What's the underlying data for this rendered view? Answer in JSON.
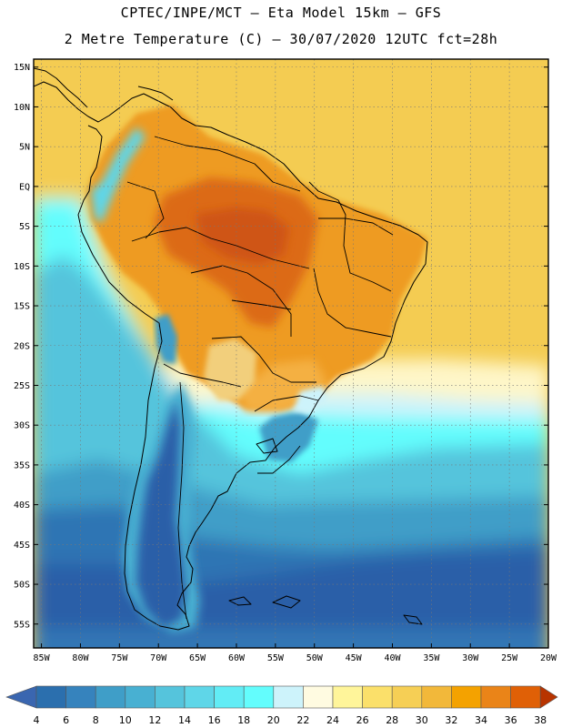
{
  "header": {
    "line1": "CPTEC/INPE/MCT –  Eta Model 15km – GFS",
    "line2": "2 Metre Temperature (C) – 30/07/2020 12UTC fct=28h"
  },
  "map": {
    "lat_range": [
      -58,
      16
    ],
    "lon_range": [
      -86,
      -20
    ],
    "lat_ticks": [
      {
        "v": 15,
        "label": "15N"
      },
      {
        "v": 10,
        "label": "10N"
      },
      {
        "v": 5,
        "label": "5N"
      },
      {
        "v": 0,
        "label": "EQ"
      },
      {
        "v": -5,
        "label": "5S"
      },
      {
        "v": -10,
        "label": "10S"
      },
      {
        "v": -15,
        "label": "15S"
      },
      {
        "v": -20,
        "label": "20S"
      },
      {
        "v": -25,
        "label": "25S"
      },
      {
        "v": -30,
        "label": "30S"
      },
      {
        "v": -35,
        "label": "35S"
      },
      {
        "v": -40,
        "label": "40S"
      },
      {
        "v": -45,
        "label": "45S"
      },
      {
        "v": -50,
        "label": "50S"
      },
      {
        "v": -55,
        "label": "55S"
      }
    ],
    "lon_ticks": [
      {
        "v": -85,
        "label": "85W"
      },
      {
        "v": -80,
        "label": "80W"
      },
      {
        "v": -75,
        "label": "75W"
      },
      {
        "v": -70,
        "label": "70W"
      },
      {
        "v": -65,
        "label": "65W"
      },
      {
        "v": -60,
        "label": "60W"
      },
      {
        "v": -55,
        "label": "55W"
      },
      {
        "v": -50,
        "label": "50W"
      },
      {
        "v": -45,
        "label": "45W"
      },
      {
        "v": -40,
        "label": "40W"
      },
      {
        "v": -35,
        "label": "35W"
      },
      {
        "v": -30,
        "label": "30W"
      },
      {
        "v": -25,
        "label": "25W"
      },
      {
        "v": -20,
        "label": "20W"
      }
    ]
  },
  "colorbar": {
    "labels": [
      "4",
      "6",
      "8",
      "10",
      "12",
      "14",
      "16",
      "18",
      "20",
      "22",
      "24",
      "26",
      "28",
      "30",
      "32",
      "34",
      "36",
      "38"
    ],
    "colors": [
      "#3a66b0",
      "#2b6fae",
      "#3683bd",
      "#3f9ec8",
      "#48b0d2",
      "#55c4dc",
      "#5fd6e8",
      "#62ecf5",
      "#63fdfd",
      "#cdf3fb",
      "#fffbe1",
      "#fff59a",
      "#fbe06a",
      "#f6cf55",
      "#f2b83a",
      "#f4a200",
      "#ea8418",
      "#e06006",
      "#cc4000",
      "#b83400"
    ]
  }
}
